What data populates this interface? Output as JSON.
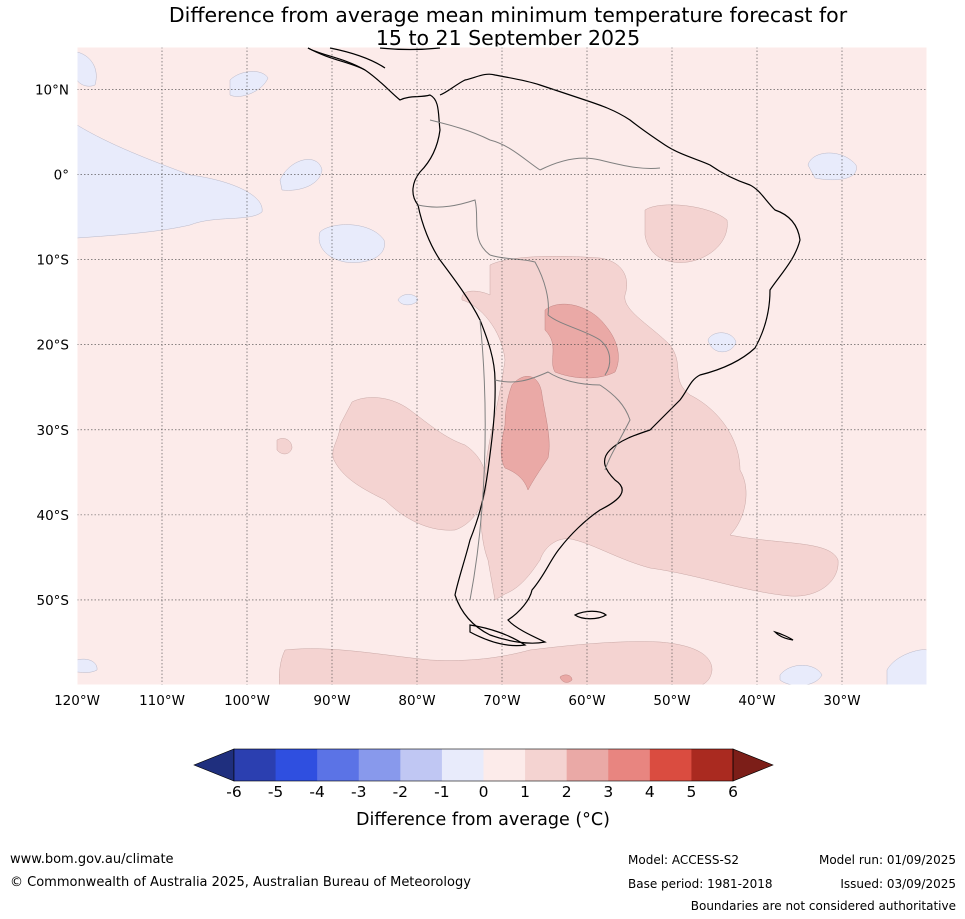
{
  "title": {
    "line1": "Difference from average mean minimum temperature forecast for",
    "line2": "15 to 21 September 2025"
  },
  "map": {
    "lat_labels": [
      "10°N",
      "0°",
      "10°S",
      "20°S",
      "30°S",
      "40°S",
      "50°S"
    ],
    "lon_labels": [
      "120°W",
      "110°W",
      "100°W",
      "90°W",
      "80°W",
      "70°W",
      "60°W",
      "50°W",
      "40°W",
      "30°W"
    ],
    "lat_values": [
      10,
      0,
      -10,
      -20,
      -30,
      -40,
      -50
    ],
    "lon_values": [
      -120,
      -110,
      -100,
      -90,
      -80,
      -70,
      -60,
      -50,
      -40,
      -30
    ],
    "extent": {
      "lon_min": -120,
      "lon_max": -20,
      "lat_min": -60,
      "lat_max": 15
    },
    "background_anomaly_class": "0 to 1",
    "background_color": "#fcebea"
  },
  "colorbar": {
    "ticks": [
      "-6",
      "-5",
      "-4",
      "-3",
      "-2",
      "-1",
      "0",
      "1",
      "2",
      "3",
      "4",
      "5",
      "6"
    ],
    "colors": [
      "#1f2f7e",
      "#2b3fb0",
      "#2f4fe0",
      "#5b73e6",
      "#8899ec",
      "#c0c7f3",
      "#e8ebfb",
      "#fcebea",
      "#f4d3d1",
      "#eaa9a6",
      "#e88580",
      "#da4c40",
      "#aa2a20",
      "#7c1e18"
    ],
    "label": "Difference from average (°C)"
  },
  "footer": {
    "website": "www.bom.gov.au/climate",
    "copyright": "© Commonwealth of Australia 2025, Australian Bureau of Meteorology",
    "model": "Model: ACCESS-S2",
    "base_period": "Base period: 1981-2018",
    "model_run": "Model run: 01/09/2025",
    "issued": "Issued: 03/09/2025",
    "disclaimer": "Boundaries are not considered authoritative"
  }
}
